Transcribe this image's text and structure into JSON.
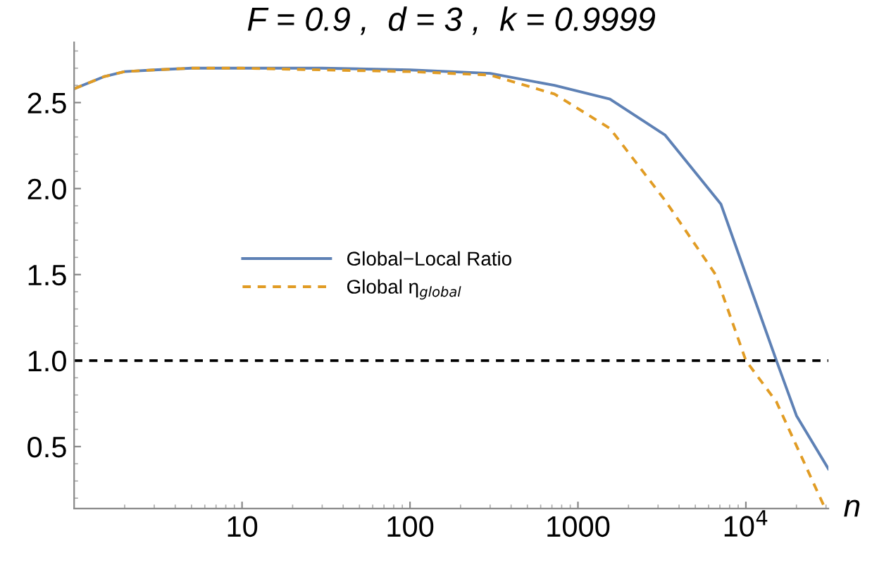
{
  "chart_data": {
    "type": "line",
    "title": "F = 0.9 ,  d = 3 ,  k = 0.9999",
    "xlabel": "n",
    "log": "x",
    "xlim": [
      1,
      31000
    ],
    "ylim": [
      0.14,
      2.85
    ],
    "xticks": [
      10,
      100,
      1000,
      {
        "value": 10000,
        "label": "10$^{4}$"
      }
    ],
    "yticks": [
      0.5,
      {
        "value": 1,
        "label": "1.0"
      },
      1.5,
      {
        "value": 2,
        "label": "2.0"
      },
      2.5
    ],
    "grid": false,
    "legend": "center left",
    "marker": "none",
    "ref_lines": [
      {
        "axis": "y",
        "value": 1.0,
        "color": "#000000",
        "line_style": "dashed"
      }
    ],
    "series": [
      {
        "name": "Global−Local Ratio",
        "color": "#5e81b5",
        "line_style": "solid",
        "x": [
          1,
          1.5,
          2,
          3,
          5,
          10,
          30,
          100,
          300,
          724,
          1550,
          3310,
          7100,
          10000,
          15200,
          20000,
          31000
        ],
        "values": [
          2.58,
          2.65,
          2.68,
          2.69,
          2.7,
          2.7,
          2.7,
          2.69,
          2.67,
          2.6,
          2.52,
          2.31,
          1.91,
          1.5,
          1.0,
          0.68,
          0.37
        ]
      },
      {
        "name": "Global η$_{global}$",
        "color": "#e19c24",
        "line_style": "dashed",
        "x": [
          1,
          1.5,
          2,
          3,
          5,
          10,
          30,
          100,
          300,
          724,
          1550,
          3310,
          6600,
          10000,
          15200,
          22400,
          29000
        ],
        "values": [
          2.58,
          2.65,
          2.68,
          2.69,
          2.7,
          2.7,
          2.69,
          2.68,
          2.66,
          2.55,
          2.35,
          1.93,
          1.5,
          1.0,
          0.76,
          0.4,
          0.16
        ]
      }
    ]
  }
}
